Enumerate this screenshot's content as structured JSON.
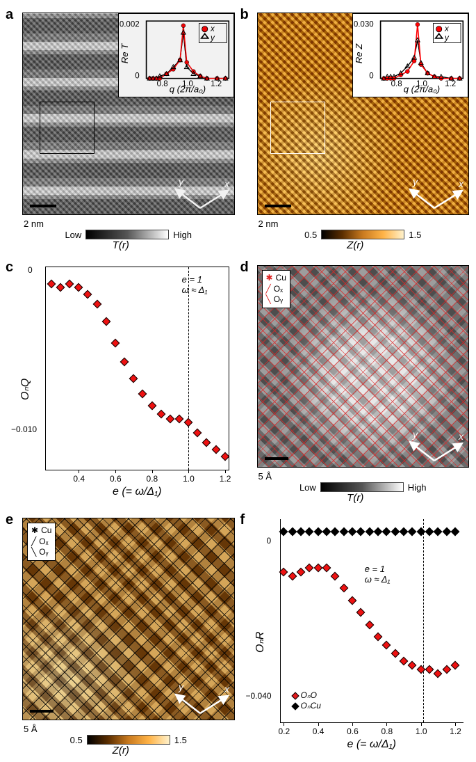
{
  "labels": {
    "a": "a",
    "b": "b",
    "c": "c",
    "d": "d",
    "e": "e",
    "f": "f"
  },
  "scales": {
    "ab": "2 nm",
    "de": "5 Å"
  },
  "colorbars": {
    "gray": {
      "low": "Low",
      "high": "High",
      "title": "T(r)"
    },
    "orange": {
      "low": "0.5",
      "high": "1.5",
      "title": "Z(r)"
    }
  },
  "axes_xy": {
    "x": "x",
    "y": "y"
  },
  "panel_de_legend": {
    "cu": "Cu",
    "ox": "Oₓ",
    "oy": "Oᵧ",
    "sep": "x"
  },
  "inset": {
    "ylabelA": "Re T",
    "ylabelB": "Re Z",
    "xlabel": "q (2π/a₀)",
    "legend_x": "x",
    "legend_y": "y",
    "q_ticks": [
      0.8,
      1.0,
      1.2
    ],
    "A_yticks": [
      "0",
      "0.002"
    ],
    "B_yticks": [
      "0",
      "0.030"
    ],
    "A_series_x": [
      0.8,
      0.82,
      0.84,
      0.86,
      0.9,
      0.94,
      0.98,
      1.0,
      1.02,
      1.06,
      1.1,
      1.14,
      1.2,
      1.25
    ],
    "A_x": [
      0,
      0,
      0,
      0,
      0.0002,
      0.0004,
      0.0008,
      0.0023,
      0.0007,
      0.0003,
      0.0001,
      0,
      0,
      0
    ],
    "A_y": [
      0,
      0,
      0,
      0.0001,
      0.0002,
      0.0005,
      0.0008,
      0.002,
      0.0005,
      0.0002,
      0.0001,
      0,
      0,
      0
    ],
    "B_x": [
      0,
      0,
      0,
      0,
      0.002,
      0.004,
      0.01,
      0.031,
      0.008,
      0.003,
      0.001,
      0,
      0,
      0
    ],
    "B_y": [
      0,
      0.001,
      0.001,
      0.001,
      0.003,
      0.007,
      0.012,
      0.022,
      0.009,
      0.003,
      0.001,
      0.001,
      0,
      0
    ]
  },
  "panel_c": {
    "ylabel": "OₙQ",
    "xlabel": "e (= ω/Δ₁)",
    "annot_top": "e = 1",
    "annot_bot": "ω ≈ Δ₁",
    "xticks": [
      0.4,
      0.6,
      0.8,
      1.0,
      1.2
    ],
    "yticks": [
      "0",
      "−0.010"
    ],
    "x": [
      0.25,
      0.3,
      0.35,
      0.4,
      0.45,
      0.5,
      0.55,
      0.6,
      0.65,
      0.7,
      0.75,
      0.8,
      0.85,
      0.9,
      0.95,
      1.0,
      1.05,
      1.1,
      1.15,
      1.2
    ],
    "y": [
      -0.001,
      -0.0012,
      -0.001,
      -0.0012,
      -0.0016,
      -0.0022,
      -0.0032,
      -0.0045,
      -0.0056,
      -0.0066,
      -0.0075,
      -0.0082,
      -0.0087,
      -0.009,
      -0.009,
      -0.0092,
      -0.0098,
      -0.0104,
      -0.0108,
      -0.0112
    ],
    "ymin": -0.012,
    "ymax": 0.0
  },
  "panel_f": {
    "ylabel": "OₙR",
    "xlabel": "e (= ω/Δ₁)",
    "annot_top": "e = 1",
    "annot_bot": "ω ≈ Δ₁",
    "legend_O": "OₙO",
    "legend_Cu": "OₙCu",
    "xticks": [
      0.2,
      0.4,
      0.6,
      0.8,
      1.0,
      1.2
    ],
    "yticks": [
      "0",
      "−0.040"
    ],
    "x": [
      0.2,
      0.25,
      0.3,
      0.35,
      0.4,
      0.45,
      0.5,
      0.55,
      0.6,
      0.65,
      0.7,
      0.75,
      0.8,
      0.85,
      0.9,
      0.95,
      1.0,
      1.05,
      1.1,
      1.15,
      1.2
    ],
    "O": [
      -0.007,
      -0.008,
      -0.007,
      -0.006,
      -0.006,
      -0.006,
      -0.008,
      -0.011,
      -0.014,
      -0.017,
      -0.02,
      -0.023,
      -0.025,
      -0.027,
      -0.029,
      -0.03,
      -0.031,
      -0.031,
      -0.032,
      -0.031,
      -0.03
    ],
    "Cu": [
      0.003,
      0.003,
      0.003,
      0.003,
      0.003,
      0.003,
      0.003,
      0.003,
      0.003,
      0.003,
      0.003,
      0.003,
      0.003,
      0.003,
      0.003,
      0.003,
      0.003,
      0.003,
      0.003,
      0.003,
      0.003
    ],
    "ymin": -0.044,
    "ymax": 0.006
  },
  "colors": {
    "red": "#e41a1c",
    "black": "#000000",
    "orange_img": "#c7791c"
  }
}
